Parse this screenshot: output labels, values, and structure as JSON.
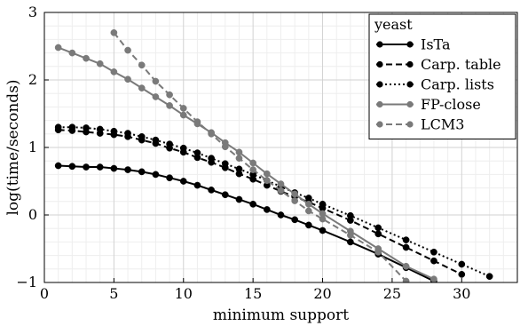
{
  "chart_data": {
    "type": "line",
    "title": "",
    "xlabel": "minimum support",
    "ylabel": "log(time/seconds)",
    "xlim": [
      0,
      34
    ],
    "ylim": [
      -1,
      3
    ],
    "xticks": [
      0,
      5,
      10,
      15,
      20,
      25,
      30
    ],
    "yticks": [
      -1,
      0,
      1,
      2,
      3
    ],
    "grid": true,
    "legend": {
      "title": "yeast",
      "placement": "top-right"
    },
    "series": [
      {
        "name": "IsTa",
        "color": "#000000",
        "dash": "solid",
        "points": [
          [
            1,
            0.73
          ],
          [
            2,
            0.72
          ],
          [
            3,
            0.71
          ],
          [
            4,
            0.71
          ],
          [
            5,
            0.69
          ],
          [
            6,
            0.67
          ],
          [
            7,
            0.64
          ],
          [
            8,
            0.6
          ],
          [
            9,
            0.55
          ],
          [
            10,
            0.5
          ],
          [
            11,
            0.44
          ],
          [
            12,
            0.37
          ],
          [
            13,
            0.3
          ],
          [
            14,
            0.23
          ],
          [
            15,
            0.16
          ],
          [
            16,
            0.08
          ],
          [
            17,
            0.0
          ],
          [
            18,
            -0.07
          ],
          [
            19,
            -0.15
          ],
          [
            20,
            -0.23
          ],
          [
            22,
            -0.4
          ],
          [
            24,
            -0.58
          ],
          [
            26,
            -0.78
          ],
          [
            28,
            -0.98
          ]
        ]
      },
      {
        "name": "Carp. table",
        "color": "#000000",
        "dash": "dashed",
        "points": [
          [
            1,
            1.26
          ],
          [
            2,
            1.25
          ],
          [
            3,
            1.23
          ],
          [
            4,
            1.21
          ],
          [
            5,
            1.19
          ],
          [
            6,
            1.16
          ],
          [
            7,
            1.11
          ],
          [
            8,
            1.06
          ],
          [
            9,
            0.99
          ],
          [
            10,
            0.93
          ],
          [
            11,
            0.85
          ],
          [
            12,
            0.78
          ],
          [
            13,
            0.7
          ],
          [
            14,
            0.61
          ],
          [
            15,
            0.53
          ],
          [
            16,
            0.44
          ],
          [
            17,
            0.35
          ],
          [
            18,
            0.27
          ],
          [
            19,
            0.19
          ],
          [
            20,
            0.1
          ],
          [
            22,
            -0.08
          ],
          [
            24,
            -0.28
          ],
          [
            26,
            -0.48
          ],
          [
            28,
            -0.68
          ],
          [
            30,
            -0.88
          ]
        ]
      },
      {
        "name": "Carp. lists",
        "color": "#000000",
        "dash": "dotted",
        "points": [
          [
            1,
            1.3
          ],
          [
            2,
            1.3
          ],
          [
            3,
            1.29
          ],
          [
            4,
            1.27
          ],
          [
            5,
            1.24
          ],
          [
            6,
            1.21
          ],
          [
            7,
            1.16
          ],
          [
            8,
            1.11
          ],
          [
            9,
            1.05
          ],
          [
            10,
            0.99
          ],
          [
            11,
            0.92
          ],
          [
            12,
            0.84
          ],
          [
            13,
            0.76
          ],
          [
            14,
            0.68
          ],
          [
            15,
            0.6
          ],
          [
            16,
            0.51
          ],
          [
            17,
            0.42
          ],
          [
            18,
            0.33
          ],
          [
            19,
            0.25
          ],
          [
            20,
            0.16
          ],
          [
            22,
            -0.01
          ],
          [
            24,
            -0.19
          ],
          [
            26,
            -0.37
          ],
          [
            28,
            -0.55
          ],
          [
            30,
            -0.73
          ],
          [
            32,
            -0.91
          ]
        ]
      },
      {
        "name": "FP-close",
        "color": "#7a7a7a",
        "dash": "solid",
        "points": [
          [
            1,
            2.48
          ],
          [
            2,
            2.4
          ],
          [
            3,
            2.32
          ],
          [
            4,
            2.24
          ],
          [
            5,
            2.12
          ],
          [
            6,
            2.01
          ],
          [
            7,
            1.88
          ],
          [
            8,
            1.75
          ],
          [
            9,
            1.62
          ],
          [
            10,
            1.48
          ],
          [
            11,
            1.35
          ],
          [
            12,
            1.22
          ],
          [
            13,
            1.07
          ],
          [
            14,
            0.93
          ],
          [
            15,
            0.77
          ],
          [
            16,
            0.61
          ],
          [
            17,
            0.46
          ],
          [
            18,
            0.31
          ],
          [
            19,
            0.16
          ],
          [
            20,
            0.02
          ],
          [
            22,
            -0.24
          ],
          [
            24,
            -0.5
          ],
          [
            26,
            -0.76
          ],
          [
            28,
            -0.95
          ]
        ]
      },
      {
        "name": "LCM3",
        "color": "#7a7a7a",
        "dash": "dashed",
        "points": [
          [
            5,
            2.7
          ],
          [
            6,
            2.44
          ],
          [
            7,
            2.22
          ],
          [
            8,
            1.98
          ],
          [
            9,
            1.78
          ],
          [
            10,
            1.58
          ],
          [
            11,
            1.38
          ],
          [
            12,
            1.2
          ],
          [
            13,
            1.01
          ],
          [
            14,
            0.84
          ],
          [
            15,
            0.67
          ],
          [
            16,
            0.51
          ],
          [
            17,
            0.36
          ],
          [
            18,
            0.21
          ],
          [
            19,
            0.06
          ],
          [
            20,
            -0.06
          ],
          [
            22,
            -0.3
          ],
          [
            24,
            -0.55
          ],
          [
            26,
            -0.98
          ]
        ]
      }
    ]
  }
}
